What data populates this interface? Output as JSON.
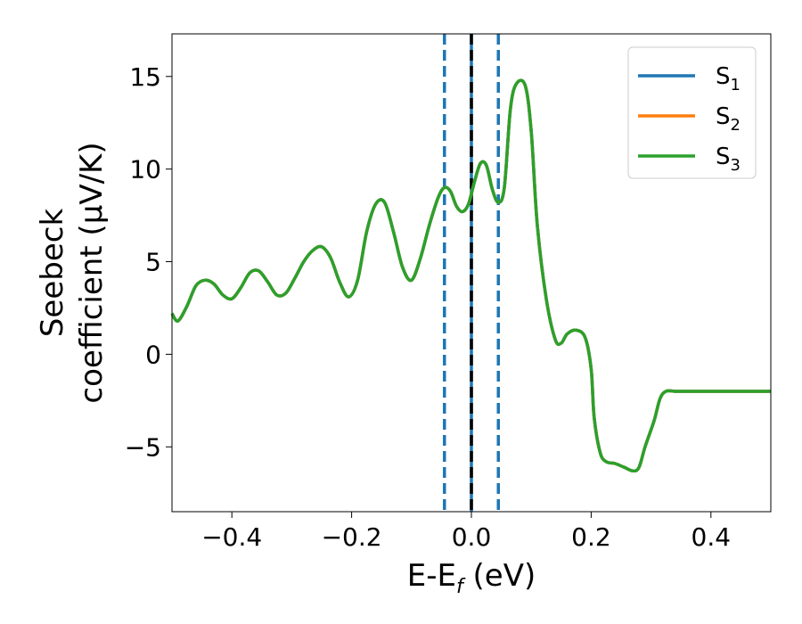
{
  "chart_data": {
    "type": "line",
    "xlabel_main": "E-E",
    "xlabel_sub": "f",
    "xlabel_unit": " (eV)",
    "ylabel_line1": "Seebeck",
    "ylabel_line2": "coefficient  (μV/K)",
    "xlim": [
      -0.5,
      0.5
    ],
    "ylim": [
      -8.5,
      17.3
    ],
    "xticks": [
      -0.4,
      -0.2,
      0.0,
      0.2,
      0.4
    ],
    "xtick_labels": [
      "−0.4",
      "−0.2",
      "0.0",
      "0.2",
      "0.4"
    ],
    "yticks": [
      -5,
      0,
      5,
      10,
      15
    ],
    "ytick_labels": [
      "−5",
      "0",
      "5",
      "10",
      "15"
    ],
    "legend_position": "top-right",
    "vertical_lines": [
      {
        "x": -0.045,
        "style": "dashed",
        "color": "#1f77b4"
      },
      {
        "x": 0.045,
        "style": "dashed",
        "color": "#1f77b4"
      },
      {
        "x": 0.0,
        "style": "solid",
        "color": "#1f77b4"
      },
      {
        "x": 0.0,
        "style": "dashed",
        "color": "#000000"
      }
    ],
    "series": [
      {
        "name_main": "S",
        "name_sub": "1",
        "color": "#1f77b4",
        "x": [
          -0.5,
          -0.49,
          -0.475,
          -0.46,
          -0.445,
          -0.43,
          -0.415,
          -0.4,
          -0.385,
          -0.37,
          -0.355,
          -0.34,
          -0.325,
          -0.31,
          -0.295,
          -0.28,
          -0.265,
          -0.25,
          -0.235,
          -0.22,
          -0.205,
          -0.19,
          -0.175,
          -0.16,
          -0.145,
          -0.13,
          -0.115,
          -0.1,
          -0.085,
          -0.07,
          -0.055,
          -0.045,
          -0.035,
          -0.025,
          -0.015,
          -0.005,
          0.005,
          0.015,
          0.025,
          0.035,
          0.045,
          0.055,
          0.065,
          0.075,
          0.09,
          0.1,
          0.11,
          0.125,
          0.14,
          0.15,
          0.16,
          0.175,
          0.19,
          0.2,
          0.205,
          0.215,
          0.225,
          0.24,
          0.255,
          0.27,
          0.28,
          0.29,
          0.305,
          0.315,
          0.325,
          0.34,
          0.355,
          0.37,
          0.385,
          0.4,
          0.415,
          0.43,
          0.445,
          0.46,
          0.475,
          0.49,
          0.5
        ],
        "y": [
          2.2,
          1.8,
          2.6,
          3.7,
          4.0,
          3.8,
          3.2,
          3.0,
          3.6,
          4.4,
          4.5,
          3.9,
          3.2,
          3.3,
          4.1,
          5.0,
          5.6,
          5.8,
          5.2,
          3.9,
          3.1,
          4.0,
          6.6,
          8.1,
          8.2,
          6.6,
          4.7,
          4.0,
          5.2,
          7.0,
          8.5,
          9.0,
          8.8,
          8.0,
          7.7,
          8.1,
          9.3,
          10.3,
          10.2,
          8.9,
          8.2,
          9.0,
          13.2,
          14.6,
          14.5,
          12.0,
          7.0,
          3.0,
          0.8,
          0.6,
          1.1,
          1.3,
          0.9,
          -0.8,
          -3.4,
          -5.3,
          -5.8,
          -5.9,
          -6.1,
          -6.3,
          -6.1,
          -5.0,
          -3.6,
          -2.4,
          -2.0,
          -2.0,
          -2.0,
          -2.0,
          -2.0,
          -2.0,
          -2.0,
          -2.0,
          -2.0,
          -2.0,
          -2.0,
          -2.0,
          -2.0
        ]
      },
      {
        "name_main": "S",
        "name_sub": "2",
        "color": "#ff7f0e"
      },
      {
        "name_main": "S",
        "name_sub": "3",
        "color": "#2ca02c"
      }
    ]
  }
}
